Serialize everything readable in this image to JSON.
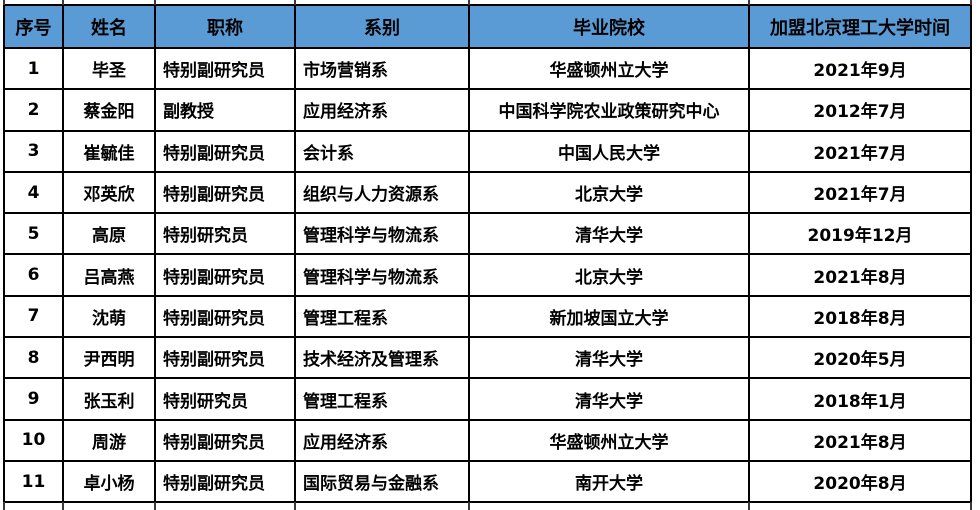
{
  "table": {
    "columns": [
      {
        "key": "index",
        "label": "序号"
      },
      {
        "key": "name",
        "label": "姓名"
      },
      {
        "key": "title",
        "label": "职称"
      },
      {
        "key": "department",
        "label": "系别"
      },
      {
        "key": "university",
        "label": "毕业院校"
      },
      {
        "key": "join_date",
        "label": "加盟北京理工大学时间"
      }
    ],
    "rows": [
      {
        "index": "1",
        "name": "毕圣",
        "title": "特别副研究员",
        "department": "市场营销系",
        "university": "华盛顿州立大学",
        "join_date": "2021年9月"
      },
      {
        "index": "2",
        "name": "蔡金阳",
        "title": "副教授",
        "department": "应用经济系",
        "university": "中国科学院农业政策研究中心",
        "join_date": "2012年7月"
      },
      {
        "index": "3",
        "name": "崔毓佳",
        "title": "特别副研究员",
        "department": "会计系",
        "university": "中国人民大学",
        "join_date": "2021年7月"
      },
      {
        "index": "4",
        "name": "邓英欣",
        "title": "特别副研究员",
        "department": "组织与人力资源系",
        "university": "北京大学",
        "join_date": "2021年7月"
      },
      {
        "index": "5",
        "name": "高原",
        "title": "特别研究员",
        "department": "管理科学与物流系",
        "university": "清华大学",
        "join_date": "2019年12月"
      },
      {
        "index": "6",
        "name": "吕高燕",
        "title": "特别副研究员",
        "department": "管理科学与物流系",
        "university": "北京大学",
        "join_date": "2021年8月"
      },
      {
        "index": "7",
        "name": "沈萌",
        "title": "特别副研究员",
        "department": "管理工程系",
        "university": "新加坡国立大学",
        "join_date": "2018年8月"
      },
      {
        "index": "8",
        "name": "尹西明",
        "title": "特别副研究员",
        "department": "技术经济及管理系",
        "university": "清华大学",
        "join_date": "2020年5月"
      },
      {
        "index": "9",
        "name": "张玉利",
        "title": "特别研究员",
        "department": "管理工程系",
        "university": "清华大学",
        "join_date": "2018年1月"
      },
      {
        "index": "10",
        "name": "周游",
        "title": "特别副研究员",
        "department": "应用经济系",
        "university": "华盛顿州立大学",
        "join_date": "2021年8月"
      },
      {
        "index": "11",
        "name": "卓小杨",
        "title": "特别副研究员",
        "department": "国际贸易与金融系",
        "university": "南开大学",
        "join_date": "2020年8月"
      }
    ],
    "colors": {
      "header_bg": "#5B9BD5",
      "border": "#000000",
      "body_bg": "#FFFFFF",
      "text": "#000000"
    }
  }
}
